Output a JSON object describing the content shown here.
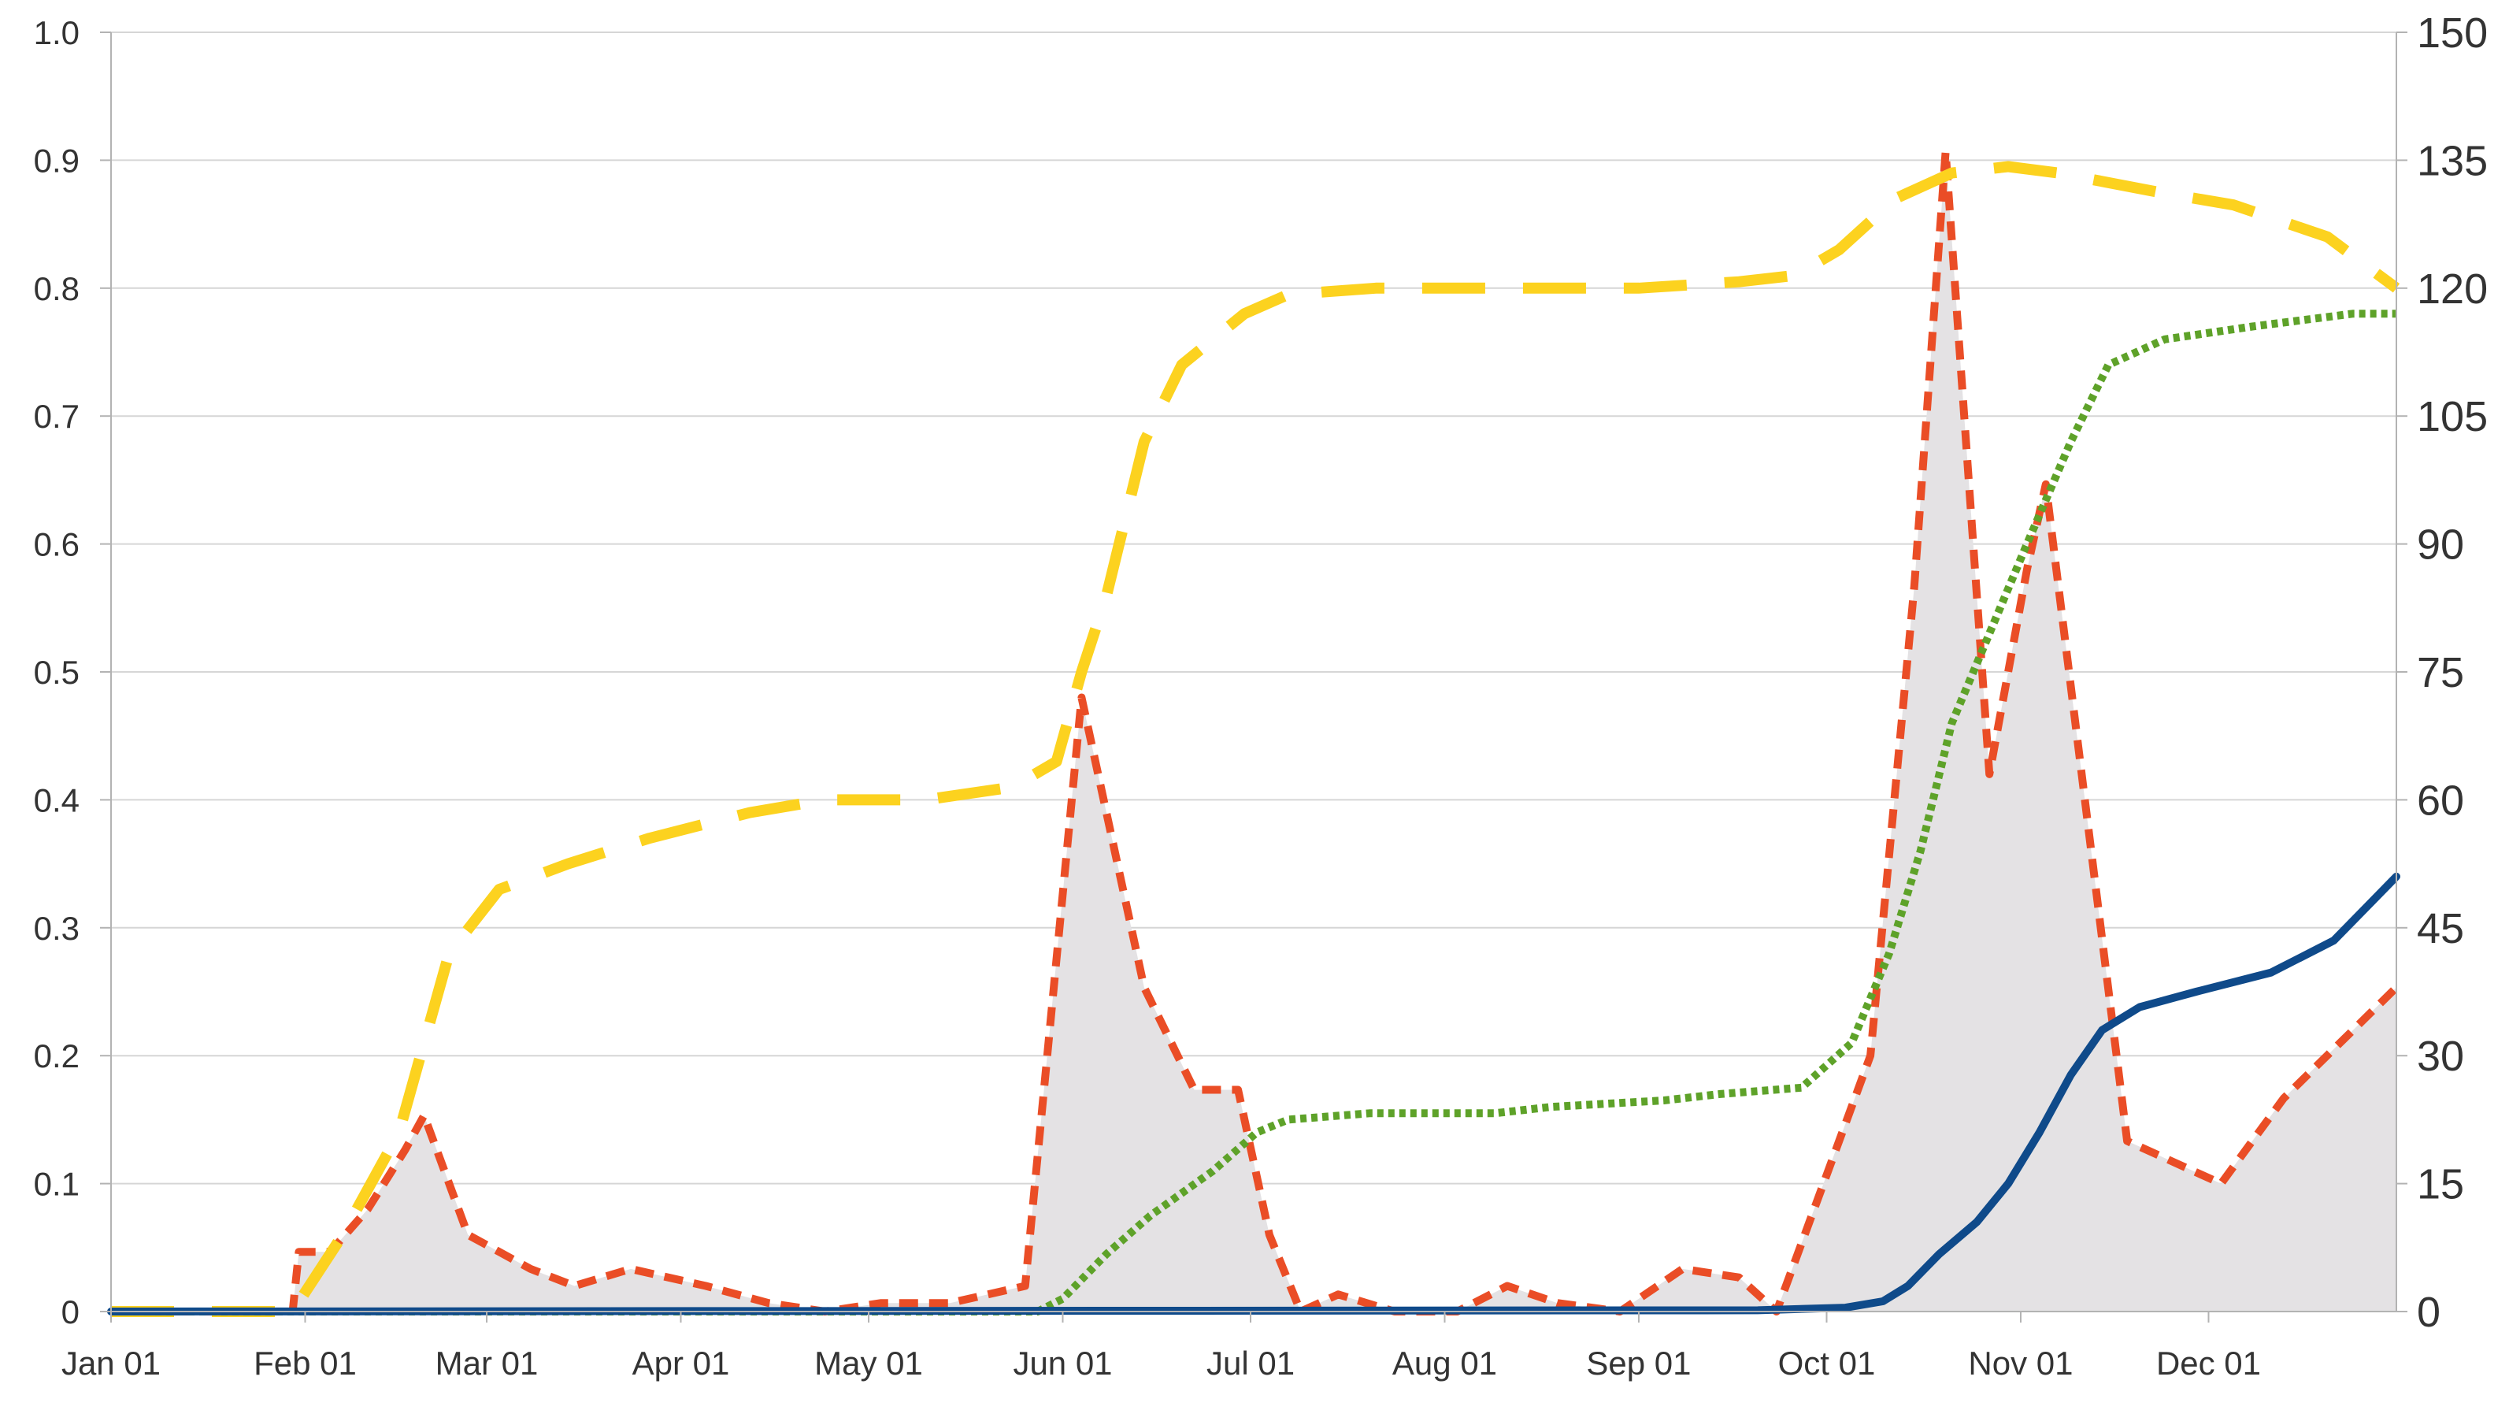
{
  "chart_data": {
    "type": "line",
    "title": "",
    "xlabel": "",
    "ylabel_left": "",
    "ylabel_right": "",
    "legend": "none",
    "grid": true,
    "x_range": [
      "2020-01-01",
      "2020-12-31"
    ],
    "y_left_range": [
      0,
      1
    ],
    "y_right_range": [
      0,
      150
    ],
    "x_ticks": [
      "Jan 01",
      "Feb 01",
      "Mar 01",
      "Apr 01",
      "May 01",
      "Jun 01",
      "Jul 01",
      "Aug 01",
      "Sep 01",
      "Oct 01",
      "Nov 01",
      "Dec 01"
    ],
    "x_tick_dates": [
      "2020-01-01",
      "2020-02-01",
      "2020-03-01",
      "2020-04-01",
      "2020-05-01",
      "2020-06-01",
      "2020-07-01",
      "2020-08-01",
      "2020-09-01",
      "2020-10-01",
      "2020-11-01",
      "2020-12-01"
    ],
    "y_left_ticks": [
      "0",
      "0.1",
      "0.2",
      "0.3",
      "0.4",
      "0.5",
      "0.6",
      "0.7",
      "0.8",
      "0.9",
      "1.0"
    ],
    "y_right_ticks": [
      "0",
      "15",
      "30",
      "45",
      "60",
      "75",
      "90",
      "105",
      "120",
      "135",
      "150"
    ],
    "series": [
      {
        "style": "area",
        "axis": "right",
        "color": "#e4e2e4",
        "points": [
          [
            "2020-01-01",
            0
          ],
          [
            "2020-01-30",
            0
          ],
          [
            "2020-01-31",
            7
          ],
          [
            "2020-02-05",
            7
          ],
          [
            "2020-02-11",
            12
          ],
          [
            "2020-02-17",
            19
          ],
          [
            "2020-02-20",
            23
          ],
          [
            "2020-02-27",
            9
          ],
          [
            "2020-03-08",
            5
          ],
          [
            "2020-03-15",
            3
          ],
          [
            "2020-03-24",
            5
          ],
          [
            "2020-04-05",
            3
          ],
          [
            "2020-04-15",
            1
          ],
          [
            "2020-04-24",
            0
          ],
          [
            "2020-05-03",
            1
          ],
          [
            "2020-05-14",
            1
          ],
          [
            "2020-05-26",
            3
          ],
          [
            "2020-06-04",
            72
          ],
          [
            "2020-06-14",
            38
          ],
          [
            "2020-06-22",
            26
          ],
          [
            "2020-06-29",
            26
          ],
          [
            "2020-07-04",
            9
          ],
          [
            "2020-07-09",
            0
          ],
          [
            "2020-07-15",
            2
          ],
          [
            "2020-07-24",
            0
          ],
          [
            "2020-08-03",
            0
          ],
          [
            "2020-08-11",
            3
          ],
          [
            "2020-08-19",
            1
          ],
          [
            "2020-08-29",
            0
          ],
          [
            "2020-09-08",
            5
          ],
          [
            "2020-09-17",
            4
          ],
          [
            "2020-09-23",
            0
          ],
          [
            "2020-10-08",
            30
          ],
          [
            "2020-10-15",
            85
          ],
          [
            "2020-10-20",
            136
          ],
          [
            "2020-10-27",
            63
          ],
          [
            "2020-11-02",
            87
          ],
          [
            "2020-11-05",
            97
          ],
          [
            "2020-11-18",
            20
          ],
          [
            "2020-12-03",
            15
          ],
          [
            "2020-12-13",
            25
          ],
          [
            "2020-12-31",
            38
          ]
        ]
      },
      {
        "style": "dashed",
        "axis": "right",
        "color": "#ea4d26",
        "points": [
          [
            "2020-01-01",
            0
          ],
          [
            "2020-01-30",
            0
          ],
          [
            "2020-01-31",
            7
          ],
          [
            "2020-02-05",
            7
          ],
          [
            "2020-02-11",
            12
          ],
          [
            "2020-02-17",
            19
          ],
          [
            "2020-02-20",
            23
          ],
          [
            "2020-02-27",
            9
          ],
          [
            "2020-03-08",
            5
          ],
          [
            "2020-03-15",
            3
          ],
          [
            "2020-03-24",
            5
          ],
          [
            "2020-04-05",
            3
          ],
          [
            "2020-04-15",
            1
          ],
          [
            "2020-04-24",
            0
          ],
          [
            "2020-05-03",
            1
          ],
          [
            "2020-05-14",
            1
          ],
          [
            "2020-05-26",
            3
          ],
          [
            "2020-06-04",
            72
          ],
          [
            "2020-06-14",
            38
          ],
          [
            "2020-06-22",
            26
          ],
          [
            "2020-06-29",
            26
          ],
          [
            "2020-07-04",
            9
          ],
          [
            "2020-07-09",
            0
          ],
          [
            "2020-07-15",
            2
          ],
          [
            "2020-07-24",
            0
          ],
          [
            "2020-08-03",
            0
          ],
          [
            "2020-08-11",
            3
          ],
          [
            "2020-08-19",
            1
          ],
          [
            "2020-08-29",
            0
          ],
          [
            "2020-09-08",
            5
          ],
          [
            "2020-09-17",
            4
          ],
          [
            "2020-09-23",
            0
          ],
          [
            "2020-10-08",
            30
          ],
          [
            "2020-10-15",
            85
          ],
          [
            "2020-10-20",
            136
          ],
          [
            "2020-10-27",
            63
          ],
          [
            "2020-11-02",
            87
          ],
          [
            "2020-11-05",
            97
          ],
          [
            "2020-11-18",
            20
          ],
          [
            "2020-12-03",
            15
          ],
          [
            "2020-12-13",
            25
          ],
          [
            "2020-12-31",
            38
          ]
        ]
      },
      {
        "style": "long-dash",
        "axis": "left",
        "color": "#fcd21f",
        "points": [
          [
            "2020-01-01",
            0
          ],
          [
            "2020-01-30",
            0
          ],
          [
            "2020-02-07",
            0.06
          ],
          [
            "2020-02-16",
            0.14
          ],
          [
            "2020-02-24",
            0.28
          ],
          [
            "2020-03-03",
            0.33
          ],
          [
            "2020-03-14",
            0.35
          ],
          [
            "2020-03-27",
            0.37
          ],
          [
            "2020-04-12",
            0.39
          ],
          [
            "2020-04-24",
            0.4
          ],
          [
            "2020-05-10",
            0.4
          ],
          [
            "2020-05-24",
            0.41
          ],
          [
            "2020-05-31",
            0.43
          ],
          [
            "2020-06-04",
            0.5
          ],
          [
            "2020-06-08",
            0.56
          ],
          [
            "2020-06-14",
            0.68
          ],
          [
            "2020-06-20",
            0.74
          ],
          [
            "2020-06-30",
            0.78
          ],
          [
            "2020-07-07",
            0.795
          ],
          [
            "2020-07-21",
            0.8
          ],
          [
            "2020-08-15",
            0.8
          ],
          [
            "2020-09-01",
            0.8
          ],
          [
            "2020-09-17",
            0.805
          ],
          [
            "2020-09-26",
            0.81
          ],
          [
            "2020-10-03",
            0.83
          ],
          [
            "2020-10-12",
            0.87
          ],
          [
            "2020-10-21",
            0.89
          ],
          [
            "2020-10-30",
            0.895
          ],
          [
            "2020-11-07",
            0.89
          ],
          [
            "2020-11-23",
            0.875
          ],
          [
            "2020-12-05",
            0.865
          ],
          [
            "2020-12-20",
            0.84
          ],
          [
            "2020-12-31",
            0.8
          ]
        ]
      },
      {
        "style": "dotted",
        "axis": "left",
        "color": "#5ea229",
        "points": [
          [
            "2020-01-01",
            0
          ],
          [
            "2020-05-28",
            0
          ],
          [
            "2020-06-01",
            0.01
          ],
          [
            "2020-06-08",
            0.045
          ],
          [
            "2020-06-15",
            0.075
          ],
          [
            "2020-06-25",
            0.11
          ],
          [
            "2020-07-02",
            0.14
          ],
          [
            "2020-07-07",
            0.15
          ],
          [
            "2020-07-20",
            0.155
          ],
          [
            "2020-08-09",
            0.155
          ],
          [
            "2020-08-18",
            0.16
          ],
          [
            "2020-09-05",
            0.165
          ],
          [
            "2020-09-14",
            0.17
          ],
          [
            "2020-09-27",
            0.175
          ],
          [
            "2020-10-05",
            0.21
          ],
          [
            "2020-10-11",
            0.28
          ],
          [
            "2020-10-16",
            0.36
          ],
          [
            "2020-10-21",
            0.46
          ],
          [
            "2020-11-02",
            0.6
          ],
          [
            "2020-11-09",
            0.68
          ],
          [
            "2020-11-15",
            0.74
          ],
          [
            "2020-11-24",
            0.76
          ],
          [
            "2020-12-08",
            0.77
          ],
          [
            "2020-12-24",
            0.78
          ],
          [
            "2020-12-31",
            0.78
          ]
        ]
      },
      {
        "style": "solid",
        "axis": "left",
        "color": "#0f4a8a",
        "points": [
          [
            "2020-01-01",
            0
          ],
          [
            "2020-09-20",
            0.001
          ],
          [
            "2020-10-04",
            0.003
          ],
          [
            "2020-10-10",
            0.008
          ],
          [
            "2020-10-14",
            0.02
          ],
          [
            "2020-10-19",
            0.045
          ],
          [
            "2020-10-25",
            0.07
          ],
          [
            "2020-10-30",
            0.1
          ],
          [
            "2020-11-04",
            0.14
          ],
          [
            "2020-11-09",
            0.185
          ],
          [
            "2020-11-14",
            0.22
          ],
          [
            "2020-11-20",
            0.238
          ],
          [
            "2020-11-29",
            0.25
          ],
          [
            "2020-12-11",
            0.265
          ],
          [
            "2020-12-21",
            0.29
          ],
          [
            "2020-12-31",
            0.34
          ]
        ]
      }
    ]
  }
}
